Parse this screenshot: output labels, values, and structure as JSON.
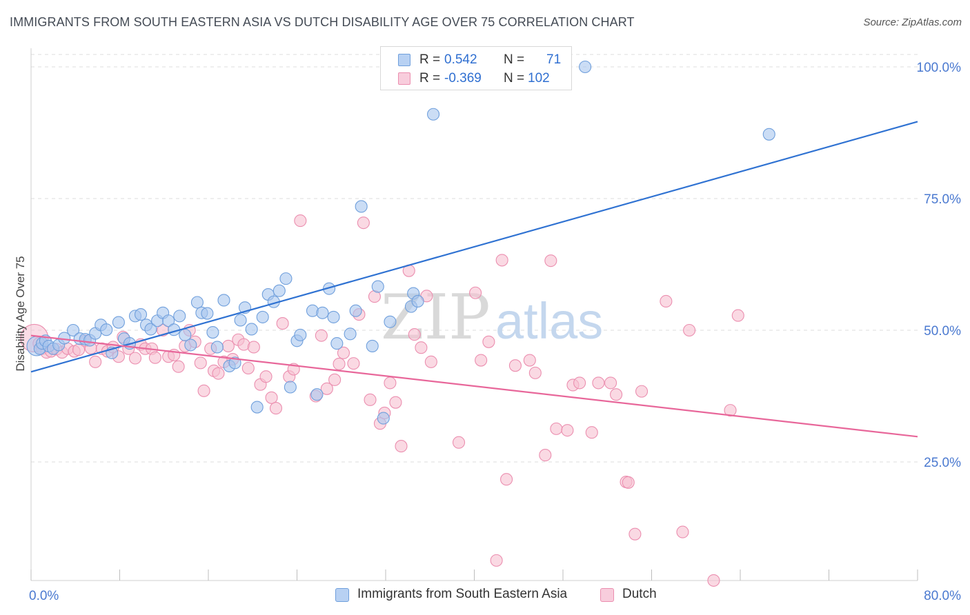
{
  "title": "IMMIGRANTS FROM SOUTH EASTERN ASIA VS DUTCH DISABILITY AGE OVER 75 CORRELATION CHART",
  "source": "Source: ZipAtlas.com",
  "watermark": {
    "zip": "ZIP",
    "atlas": "atlas"
  },
  "legend": {
    "series1": {
      "r_label": "R =",
      "r_value": "0.542",
      "n_label": "N =",
      "n_value": "71"
    },
    "series2": {
      "r_label": "R =",
      "r_value": "-0.369",
      "n_label": "N =",
      "n_value": "102"
    }
  },
  "colors": {
    "blue_fill": "#a9c7ef",
    "blue_stroke": "#6f9fdc",
    "blue_line": "#2f72d2",
    "pink_fill": "#f6bfd1",
    "pink_stroke": "#eb8eaf",
    "pink_line": "#e8679a",
    "axis_text": "#4a79d0"
  },
  "chart_data": {
    "type": "scatter",
    "title": "IMMIGRANTS FROM SOUTH EASTERN ASIA VS DUTCH DISABILITY AGE OVER 75 CORRELATION CHART",
    "xlabel": "",
    "ylabel": "Disability Age Over 75",
    "xlim": [
      0,
      80
    ],
    "ylim": [
      0,
      105
    ],
    "x_ticks": [
      0,
      8,
      16,
      24,
      32,
      40,
      48,
      56,
      64,
      72,
      80
    ],
    "x_tick_labels": {
      "0": "0.0%",
      "80": "80.0%"
    },
    "y_ticks": [
      25,
      50,
      75,
      100
    ],
    "y_tick_labels": [
      "25.0%",
      "50.0%",
      "75.0%",
      "100.0%"
    ],
    "grid": true,
    "series": [
      {
        "name": "Immigrants from South Eastern Asia",
        "trend": {
          "x": [
            0,
            80
          ],
          "y": [
            42.1,
            89.6
          ]
        },
        "points": [
          [
            0.5,
            47.0
          ],
          [
            0.8,
            46.5
          ],
          [
            1.0,
            47.5
          ],
          [
            1.3,
            48.0
          ],
          [
            1.6,
            47.0
          ],
          [
            2.0,
            46.5
          ],
          [
            2.5,
            47.2
          ],
          [
            3.0,
            48.5
          ],
          [
            3.8,
            50.0
          ],
          [
            4.4,
            48.4
          ],
          [
            4.9,
            48.3
          ],
          [
            5.3,
            48.1
          ],
          [
            5.8,
            49.4
          ],
          [
            6.3,
            51.0
          ],
          [
            6.8,
            50.1
          ],
          [
            7.3,
            45.7
          ],
          [
            7.9,
            51.5
          ],
          [
            8.4,
            48.4
          ],
          [
            8.9,
            47.5
          ],
          [
            9.4,
            52.7
          ],
          [
            9.9,
            53.0
          ],
          [
            10.4,
            51.0
          ],
          [
            10.8,
            50.2
          ],
          [
            11.4,
            51.8
          ],
          [
            11.9,
            53.3
          ],
          [
            12.4,
            51.8
          ],
          [
            12.9,
            50.1
          ],
          [
            13.4,
            52.7
          ],
          [
            13.9,
            49.1
          ],
          [
            14.4,
            47.2
          ],
          [
            15.0,
            55.3
          ],
          [
            15.4,
            53.3
          ],
          [
            15.9,
            53.2
          ],
          [
            16.4,
            49.6
          ],
          [
            16.8,
            46.8
          ],
          [
            17.4,
            55.7
          ],
          [
            17.9,
            43.2
          ],
          [
            18.4,
            43.8
          ],
          [
            18.9,
            51.9
          ],
          [
            19.3,
            54.3
          ],
          [
            19.9,
            50.2
          ],
          [
            20.4,
            35.4
          ],
          [
            20.9,
            52.5
          ],
          [
            21.4,
            56.8
          ],
          [
            21.9,
            55.4
          ],
          [
            22.4,
            57.5
          ],
          [
            23.0,
            59.8
          ],
          [
            23.4,
            39.2
          ],
          [
            24.0,
            48.0
          ],
          [
            24.3,
            49.1
          ],
          [
            25.4,
            53.7
          ],
          [
            25.8,
            37.8
          ],
          [
            26.3,
            53.3
          ],
          [
            26.9,
            57.9
          ],
          [
            27.3,
            52.5
          ],
          [
            27.6,
            47.5
          ],
          [
            28.8,
            49.3
          ],
          [
            29.3,
            53.7
          ],
          [
            29.8,
            73.5
          ],
          [
            30.8,
            47.0
          ],
          [
            31.3,
            58.3
          ],
          [
            31.8,
            33.3
          ],
          [
            32.4,
            51.6
          ],
          [
            34.3,
            54.5
          ],
          [
            34.5,
            57.0
          ],
          [
            34.9,
            55.5
          ],
          [
            36.3,
            91.0
          ],
          [
            38.0,
            100.0
          ],
          [
            43.3,
            100.0
          ],
          [
            50.0,
            100.0
          ],
          [
            66.6,
            87.2
          ]
        ]
      },
      {
        "name": "Dutch",
        "trend": {
          "x": [
            0,
            80
          ],
          "y": [
            49.0,
            29.8
          ]
        },
        "points": [
          [
            0.3,
            48.5
          ],
          [
            0.7,
            47.5
          ],
          [
            1.0,
            46.5
          ],
          [
            1.4,
            45.8
          ],
          [
            1.8,
            46.0
          ],
          [
            2.3,
            46.4
          ],
          [
            2.8,
            45.8
          ],
          [
            3.3,
            46.5
          ],
          [
            3.9,
            46.0
          ],
          [
            4.3,
            46.3
          ],
          [
            4.9,
            48.0
          ],
          [
            5.4,
            46.6
          ],
          [
            5.8,
            44.0
          ],
          [
            6.4,
            46.5
          ],
          [
            6.9,
            46.0
          ],
          [
            7.4,
            46.8
          ],
          [
            7.9,
            45.0
          ],
          [
            8.3,
            48.7
          ],
          [
            8.8,
            46.5
          ],
          [
            9.4,
            44.7
          ],
          [
            9.9,
            47.3
          ],
          [
            10.3,
            46.5
          ],
          [
            10.9,
            46.5
          ],
          [
            11.2,
            44.8
          ],
          [
            11.9,
            50.0
          ],
          [
            12.4,
            45.0
          ],
          [
            12.9,
            45.3
          ],
          [
            13.3,
            43.1
          ],
          [
            13.9,
            47.0
          ],
          [
            14.3,
            50.0
          ],
          [
            14.8,
            47.8
          ],
          [
            15.3,
            43.8
          ],
          [
            15.6,
            38.5
          ],
          [
            16.2,
            46.5
          ],
          [
            16.5,
            42.3
          ],
          [
            16.9,
            41.8
          ],
          [
            17.4,
            44.0
          ],
          [
            17.8,
            47.0
          ],
          [
            18.2,
            44.5
          ],
          [
            18.7,
            48.2
          ],
          [
            19.2,
            47.3
          ],
          [
            19.6,
            42.8
          ],
          [
            20.1,
            46.8
          ],
          [
            20.7,
            39.7
          ],
          [
            21.2,
            41.2
          ],
          [
            21.7,
            37.2
          ],
          [
            22.1,
            35.2
          ],
          [
            22.7,
            51.3
          ],
          [
            23.3,
            41.2
          ],
          [
            23.7,
            42.6
          ],
          [
            24.3,
            70.8
          ],
          [
            25.7,
            37.5
          ],
          [
            26.2,
            49.0
          ],
          [
            26.7,
            38.9
          ],
          [
            27.4,
            40.6
          ],
          [
            27.8,
            43.6
          ],
          [
            28.2,
            45.7
          ],
          [
            29.1,
            43.7
          ],
          [
            29.6,
            53.0
          ],
          [
            30.0,
            70.4
          ],
          [
            30.6,
            36.8
          ],
          [
            31.0,
            56.4
          ],
          [
            31.5,
            32.3
          ],
          [
            31.9,
            34.3
          ],
          [
            32.4,
            40.0
          ],
          [
            32.9,
            36.3
          ],
          [
            33.4,
            28.0
          ],
          [
            34.1,
            61.3
          ],
          [
            34.6,
            49.2
          ],
          [
            35.2,
            46.7
          ],
          [
            35.7,
            56.5
          ],
          [
            36.1,
            44.0
          ],
          [
            38.6,
            28.7
          ],
          [
            40.1,
            57.1
          ],
          [
            40.6,
            44.3
          ],
          [
            41.3,
            47.8
          ],
          [
            42.0,
            6.3
          ],
          [
            42.5,
            63.3
          ],
          [
            42.9,
            21.7
          ],
          [
            43.7,
            43.3
          ],
          [
            45.0,
            44.3
          ],
          [
            45.5,
            41.9
          ],
          [
            46.4,
            26.3
          ],
          [
            46.9,
            63.2
          ],
          [
            47.4,
            31.3
          ],
          [
            48.4,
            31.0
          ],
          [
            48.9,
            39.6
          ],
          [
            49.5,
            40.0
          ],
          [
            50.6,
            30.6
          ],
          [
            51.2,
            40.0
          ],
          [
            52.3,
            40.0
          ],
          [
            52.8,
            37.8
          ],
          [
            53.7,
            21.2
          ],
          [
            53.9,
            21.1
          ],
          [
            54.5,
            11.3
          ],
          [
            55.1,
            38.4
          ],
          [
            57.3,
            55.5
          ],
          [
            58.8,
            11.7
          ],
          [
            59.4,
            50.0
          ],
          [
            61.6,
            2.5
          ],
          [
            63.1,
            34.8
          ],
          [
            63.8,
            52.8
          ]
        ]
      }
    ]
  }
}
